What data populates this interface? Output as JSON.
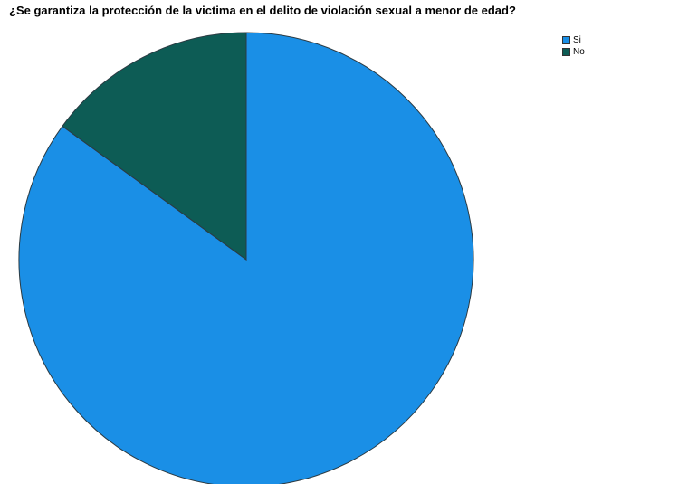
{
  "chart_data": {
    "type": "pie",
    "title": "¿Se garantiza la protección de la victima en el delito de violación sexual a menor de edad?",
    "categories": [
      "Si",
      "No"
    ],
    "values": [
      85,
      15
    ],
    "colors": [
      "#1a8fe6",
      "#0d5c55"
    ],
    "start": "top",
    "direction": "clockwise",
    "legend_position": "top-right",
    "legend": [
      "Si",
      "No"
    ]
  }
}
